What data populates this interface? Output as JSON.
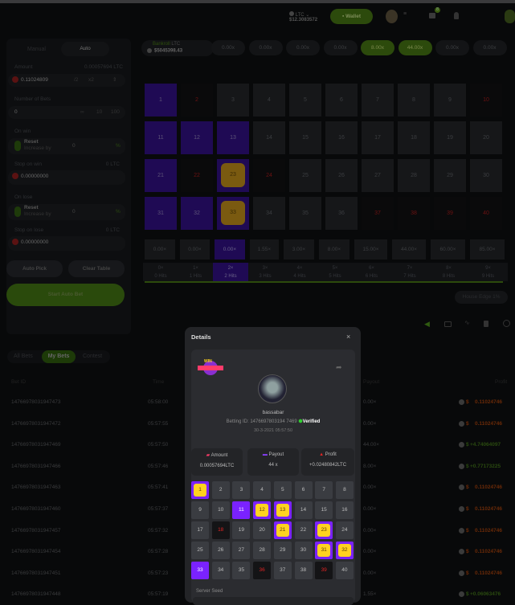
{
  "header": {
    "currency": "LTC",
    "balance": "$12.3083572",
    "wallet_label": "Wallet",
    "notification_count": "8"
  },
  "bankroll": {
    "label": "Bankroll",
    "currency": "LTC",
    "value": "$5045398.43"
  },
  "recent_multipliers": [
    "0.00x",
    "0.00x",
    "0.00x",
    "0.00x",
    "8.00x",
    "44.00x",
    "0.00x",
    "0.00x"
  ],
  "recent_wins": [
    false,
    false,
    false,
    false,
    true,
    true,
    false,
    false
  ],
  "left_panel": {
    "tabs": [
      "Manual",
      "Auto"
    ],
    "active_tab": "Auto",
    "amount_label": "Amount",
    "amount_ltc": "0.00057694 LTC",
    "amount_value": "0.11024809",
    "half": "/2",
    "double": "x2",
    "num_bets_label": "Number of Bets",
    "num_bets_value": "0",
    "num_bets_options": [
      "∞",
      "10",
      "100"
    ],
    "on_win_label": "On win",
    "reset": "Reset",
    "increase_by": "Increase by",
    "on_win_value": "0",
    "percent": "%",
    "stop_win_label": "Stop on win",
    "stop_win_ltc": "0 LTC",
    "stop_win_value": "0.00000000",
    "on_lose_label": "On lose",
    "on_lose_value": "0",
    "stop_lose_label": "Stop on lose",
    "stop_lose_ltc": "0 LTC",
    "stop_lose_value": "0.00000000",
    "auto_pick": "Auto Pick",
    "clear_table": "Clear Table",
    "start": "Start Auto Bet"
  },
  "board": {
    "selected": [
      1,
      11,
      12,
      13,
      21,
      23,
      31,
      32,
      33
    ],
    "hits": [
      23,
      33
    ],
    "misses": [
      2,
      10,
      22,
      24,
      37,
      38,
      39,
      40
    ]
  },
  "payouts": [
    "0.00×",
    "0.00×",
    "0.00×",
    "1.55×",
    "3.00×",
    "8.00×",
    "15.00×",
    "44.00×",
    "60.00×",
    "85.00×"
  ],
  "hit_labels": [
    {
      "top": "0×",
      "bottom": "0 Hits"
    },
    {
      "top": "1×",
      "bottom": "1 Hits"
    },
    {
      "top": "2×",
      "bottom": "2 Hits"
    },
    {
      "top": "3×",
      "bottom": "3 Hits"
    },
    {
      "top": "4×",
      "bottom": "4 Hits"
    },
    {
      "top": "5×",
      "bottom": "5 Hits"
    },
    {
      "top": "6×",
      "bottom": "6 Hits"
    },
    {
      "top": "7×",
      "bottom": "7 Hits"
    },
    {
      "top": "8×",
      "bottom": "8 Hits"
    },
    {
      "top": "9×",
      "bottom": "9 Hits"
    }
  ],
  "active_hits_index": 2,
  "house_edge": "House Edge 1%",
  "bets": {
    "tabs": [
      "All Bets",
      "My Bets",
      "Contest"
    ],
    "active_tab": "My Bets",
    "columns": {
      "id": "Bet ID",
      "time": "Time",
      "payout": "Payout",
      "profit": "Profit"
    },
    "rows": [
      {
        "id": "1476697803194747З",
        "time": "05:58:00",
        "payout": "0.00×",
        "profit": "0.11024746",
        "win": false
      },
      {
        "id": "147669780319474 72",
        "time": "05:57:55",
        "payout": "0.00×",
        "profit": "0.11024746",
        "win": false
      },
      {
        "id": "1476697803194 7469",
        "time": "05:57:50",
        "payout": "44.00×",
        "profit": "+4.74064097",
        "win": true
      },
      {
        "id": "1476697803194 7466",
        "time": "05:57:46",
        "payout": "8.00×",
        "profit": "+0.77173225",
        "win": true
      },
      {
        "id": "1476697803194 7463",
        "time": "05:57:41",
        "payout": "0.00×",
        "profit": "0.11024746",
        "win": false
      },
      {
        "id": "1476697803194 7460",
        "time": "05:57:37",
        "payout": "0.00×",
        "profit": "0.11024746",
        "win": false
      },
      {
        "id": "1476697803194 7457",
        "time": "05:57:32",
        "payout": "0.00×",
        "profit": "0.11024746",
        "win": false
      },
      {
        "id": "1476697803194 7454",
        "time": "05:57:28",
        "payout": "0.00×",
        "profit": "0.11024746",
        "win": false
      },
      {
        "id": "1476697803194 7451",
        "time": "05:57:23",
        "payout": "0.00×",
        "profit": "0.11024746",
        "win": false
      },
      {
        "id": "1476697803194 7448",
        "time": "05:57:19",
        "payout": "1.55×",
        "profit": "+0.06063476",
        "win": true
      }
    ]
  },
  "modal": {
    "title": "Details",
    "win_badge": "WIN",
    "username": "bassabar",
    "betting_id_label": "Betting ID:",
    "betting_id": "1476697803194 7469",
    "verified": "Verified",
    "date": "30-3-2021 05:57:50",
    "amount_label": "Amount",
    "amount": "0.00057694LTC",
    "payout_label": "Payout",
    "payout": "44 x",
    "profit_label": "Profit",
    "profit": "+0.02480842LTC",
    "selected": [
      1,
      11,
      12,
      13,
      21,
      23,
      31,
      32,
      33
    ],
    "hits": [
      1,
      12,
      13,
      21,
      23,
      31,
      32
    ],
    "misses": [
      18,
      36,
      39
    ],
    "server_seed_label": "Server Seed"
  },
  "colors": {
    "accent_green": "#5b9b16",
    "purple": "#7a22ff",
    "gold": "#ffd21f",
    "loss": "#e0531a"
  }
}
